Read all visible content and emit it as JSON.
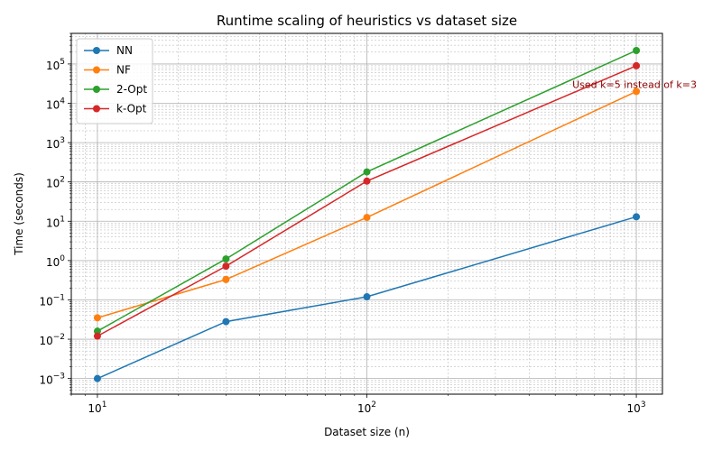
{
  "chart_data": {
    "type": "line",
    "title": "Runtime scaling of heuristics vs dataset size",
    "xlabel": "Dataset size (n)",
    "ylabel": "Time (seconds)",
    "xscale": "log",
    "yscale": "log",
    "xlim": [
      8,
      1250
    ],
    "ylim": [
      0.0004,
      600000
    ],
    "x": [
      10,
      30,
      100,
      1000
    ],
    "x_ticks": [
      {
        "value": 10,
        "base": "10",
        "exp": "1"
      },
      {
        "value": 100,
        "base": "10",
        "exp": "2"
      },
      {
        "value": 1000,
        "base": "10",
        "exp": "3"
      }
    ],
    "y_ticks": [
      {
        "value": 0.001,
        "base": "10",
        "exp": "−3"
      },
      {
        "value": 0.01,
        "base": "10",
        "exp": "−2"
      },
      {
        "value": 0.1,
        "base": "10",
        "exp": "−1"
      },
      {
        "value": 1,
        "base": "10",
        "exp": "0"
      },
      {
        "value": 10,
        "base": "10",
        "exp": "1"
      },
      {
        "value": 100,
        "base": "10",
        "exp": "2"
      },
      {
        "value": 1000,
        "base": "10",
        "exp": "3"
      },
      {
        "value": 10000,
        "base": "10",
        "exp": "4"
      },
      {
        "value": 100000,
        "base": "10",
        "exp": "5"
      }
    ],
    "grid": true,
    "grid_minor": true,
    "legend_position": "top-left",
    "series": [
      {
        "name": "NN",
        "color": "#1f77b4",
        "values": [
          0.001,
          0.028,
          0.12,
          13
        ]
      },
      {
        "name": "NF",
        "color": "#ff7f0e",
        "values": [
          0.035,
          0.33,
          12.5,
          20000
        ]
      },
      {
        "name": "2-Opt",
        "color": "#2ca02c",
        "values": [
          0.016,
          1.1,
          180,
          220000
        ]
      },
      {
        "name": "k-Opt",
        "color": "#d62728",
        "values": [
          0.012,
          0.72,
          105,
          90000
        ]
      }
    ],
    "annotations": [
      {
        "text": "Used k=5 instead of k=3",
        "x": 1000,
        "y": 30000,
        "color": "#8b0000",
        "anchor": "middle"
      }
    ]
  }
}
